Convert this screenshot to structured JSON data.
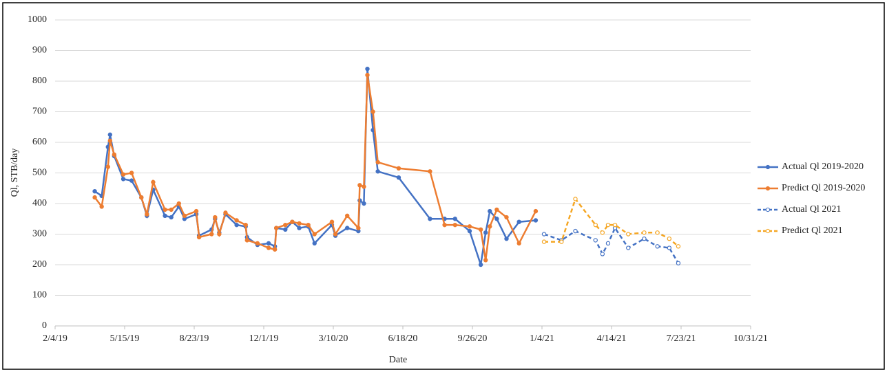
{
  "chart_data": {
    "type": "line",
    "x_label": "Date",
    "y_label": "Ql, STB/day",
    "xlim": [
      "2/4/19",
      "10/31/21"
    ],
    "xticks": [
      "2/4/19",
      "5/15/19",
      "8/23/19",
      "12/1/19",
      "3/10/20",
      "6/18/20",
      "9/26/20",
      "1/4/21",
      "4/14/21",
      "7/23/21",
      "10/31/21"
    ],
    "ylim": [
      0,
      1000
    ],
    "yticks": [
      0,
      100,
      200,
      300,
      400,
      500,
      600,
      700,
      800,
      900,
      1000
    ],
    "grid": true,
    "legend": "right",
    "series": [
      {
        "name": "Actual Ql 2019-2020",
        "color": "#4472c4",
        "line_style": "solid",
        "x": [
          "4/2/19",
          "4/12/19",
          "4/21/19",
          "4/24/19",
          "4/30/19",
          "5/13/19",
          "5/25/19",
          "6/8/19",
          "6/16/19",
          "6/25/19",
          "7/12/19",
          "7/21/19",
          "8/1/19",
          "8/9/19",
          "8/26/19",
          "8/30/19",
          "9/17/19",
          "9/22/19",
          "9/28/19",
          "10/7/19",
          "10/23/19",
          "11/5/19",
          "11/7/19",
          "11/22/19",
          "12/8/19",
          "12/17/19",
          "12/19/19",
          "1/1/20",
          "1/11/20",
          "1/21/20",
          "2/3/20",
          "2/12/20",
          "3/8/20",
          "3/13/20",
          "3/30/20",
          "4/15/20",
          "4/17/20",
          "4/23/20",
          "4/28/20",
          "5/6/20",
          "5/13/20",
          "6/12/20",
          "7/27/20",
          "8/17/20",
          "9/1/20",
          "9/22/20",
          "10/8/20",
          "10/15/20",
          "10/21/20",
          "10/31/20",
          "11/14/20",
          "12/2/20",
          "12/26/20"
        ],
        "values": [
          440,
          425,
          585,
          625,
          555,
          480,
          475,
          420,
          360,
          445,
          360,
          355,
          390,
          350,
          365,
          295,
          315,
          350,
          305,
          365,
          330,
          325,
          290,
          265,
          270,
          260,
          320,
          315,
          340,
          320,
          325,
          270,
          330,
          295,
          320,
          310,
          410,
          400,
          840,
          640,
          505,
          485,
          350,
          350,
          350,
          310,
          200,
          305,
          375,
          350,
          285,
          340,
          345
        ]
      },
      {
        "name": "Predict Ql 2019-2020",
        "color": "#ed7d31",
        "line_style": "solid",
        "x": [
          "4/2/19",
          "4/12/19",
          "4/21/19",
          "4/24/19",
          "4/30/19",
          "5/13/19",
          "5/25/19",
          "6/8/19",
          "6/16/19",
          "6/25/19",
          "7/12/19",
          "7/21/19",
          "8/1/19",
          "8/9/19",
          "8/26/19",
          "8/30/19",
          "9/17/19",
          "9/22/19",
          "9/28/19",
          "10/7/19",
          "10/23/19",
          "11/5/19",
          "11/7/19",
          "11/22/19",
          "12/8/19",
          "12/17/19",
          "12/19/19",
          "1/1/20",
          "1/11/20",
          "1/21/20",
          "2/3/20",
          "2/12/20",
          "3/8/20",
          "3/13/20",
          "3/30/20",
          "4/15/20",
          "4/17/20",
          "4/23/20",
          "4/28/20",
          "5/6/20",
          "5/13/20",
          "6/12/20",
          "7/27/20",
          "8/17/20",
          "9/1/20",
          "9/22/20",
          "10/8/20",
          "10/15/20",
          "10/21/20",
          "10/31/20",
          "11/14/20",
          "12/2/20",
          "12/26/20"
        ],
        "values": [
          420,
          390,
          520,
          605,
          560,
          495,
          500,
          420,
          365,
          470,
          380,
          380,
          400,
          360,
          375,
          290,
          300,
          355,
          300,
          370,
          345,
          330,
          280,
          270,
          255,
          250,
          320,
          330,
          340,
          335,
          330,
          300,
          340,
          300,
          360,
          320,
          460,
          455,
          820,
          700,
          535,
          515,
          505,
          330,
          330,
          325,
          315,
          215,
          325,
          380,
          355,
          270,
          375
        ]
      },
      {
        "name": "Actual Ql 2021",
        "color": "#4472c4",
        "line_style": "dashed",
        "x": [
          "1/7/21",
          "2/1/21",
          "2/21/21",
          "3/22/21",
          "4/1/21",
          "4/9/21",
          "4/19/21",
          "5/8/21",
          "5/31/21",
          "6/19/21",
          "7/6/21",
          "7/19/21"
        ],
        "values": [
          300,
          280,
          310,
          280,
          235,
          270,
          320,
          255,
          285,
          260,
          255,
          205
        ]
      },
      {
        "name": "Predict Ql 2021",
        "color": "#f5a623",
        "line_style": "dashed",
        "x": [
          "1/7/21",
          "2/1/21",
          "2/21/21",
          "3/22/21",
          "4/1/21",
          "4/9/21",
          "4/19/21",
          "5/8/21",
          "5/31/21",
          "6/19/21",
          "7/6/21",
          "7/19/21"
        ],
        "values": [
          275,
          275,
          415,
          330,
          305,
          330,
          330,
          300,
          305,
          305,
          285,
          260
        ]
      }
    ]
  }
}
